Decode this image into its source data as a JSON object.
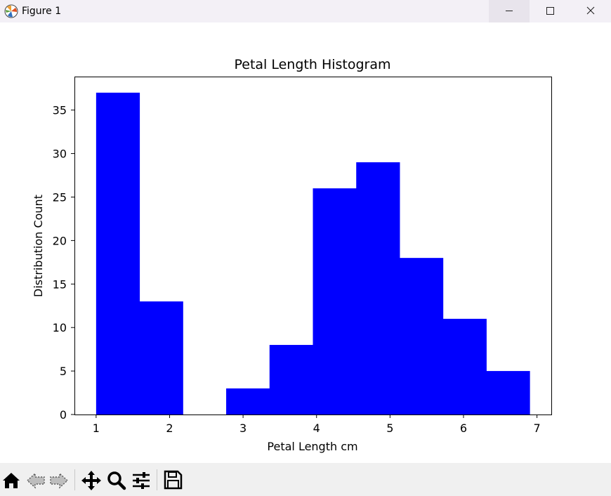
{
  "window": {
    "title": "Figure 1",
    "icon": "matplotlib-logo-icon",
    "controls": [
      "minimize-icon",
      "maximize-icon",
      "close-icon"
    ]
  },
  "toolbar": {
    "tools": [
      "home-icon",
      "back-arrow-icon",
      "forward-arrow-icon",
      "pan-move-icon",
      "zoom-magnifier-icon",
      "configure-subplots-icon",
      "save-floppy-icon"
    ]
  },
  "chart_data": {
    "type": "bar",
    "title": "Petal Length Histogram",
    "xlabel": "Petal Length cm",
    "ylabel": "Distribution Count",
    "bins": [
      {
        "start": 1.0,
        "end": 1.59,
        "count": 37
      },
      {
        "start": 1.59,
        "end": 2.18,
        "count": 13
      },
      {
        "start": 2.18,
        "end": 2.77,
        "count": 0
      },
      {
        "start": 2.77,
        "end": 3.36,
        "count": 3
      },
      {
        "start": 3.36,
        "end": 3.95,
        "count": 8
      },
      {
        "start": 3.95,
        "end": 4.54,
        "count": 26
      },
      {
        "start": 4.54,
        "end": 5.13,
        "count": 29
      },
      {
        "start": 5.13,
        "end": 5.72,
        "count": 18
      },
      {
        "start": 5.72,
        "end": 6.31,
        "count": 11
      },
      {
        "start": 6.31,
        "end": 6.9,
        "count": 5
      }
    ],
    "xlim": [
      0.705,
      7.195
    ],
    "ylim": [
      0,
      38.85
    ],
    "xticks": [
      1,
      2,
      3,
      4,
      5,
      6,
      7
    ],
    "xtick_labels": [
      "1",
      "2",
      "3",
      "4",
      "5",
      "6",
      "7"
    ],
    "yticks": [
      0,
      5,
      10,
      15,
      20,
      25,
      30,
      35
    ],
    "ytick_labels": [
      "0",
      "5",
      "10",
      "15",
      "20",
      "25",
      "30",
      "35"
    ],
    "bar_color": "#0000ff",
    "grid": false,
    "legend": "none"
  }
}
